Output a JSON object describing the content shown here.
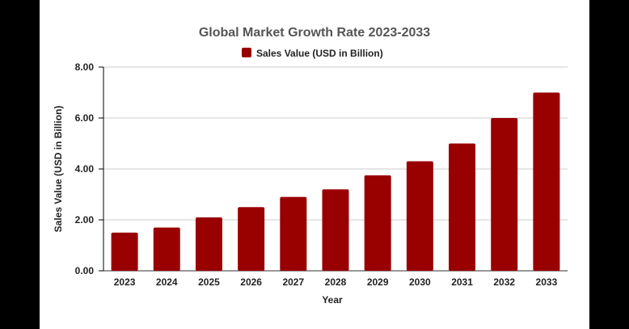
{
  "chart_data": {
    "type": "bar",
    "title": "Global Market Growth Rate 2023-2033",
    "xlabel": "Year",
    "ylabel": "Sales Value (USD in Billion)",
    "categories": [
      "2023",
      "2024",
      "2025",
      "2026",
      "2027",
      "2028",
      "2029",
      "2030",
      "2031",
      "2032",
      "2033"
    ],
    "series": [
      {
        "name": "Sales Value (USD in Billion)",
        "values": [
          1.5,
          1.7,
          2.1,
          2.5,
          2.9,
          3.2,
          3.75,
          4.3,
          5.0,
          6.0,
          7.0
        ],
        "color": "#990000"
      }
    ],
    "ylim": [
      0,
      8
    ],
    "yticks": [
      "0.00",
      "2.00",
      "4.00",
      "6.00",
      "8.00"
    ],
    "grid": true,
    "legend": "top-center"
  }
}
